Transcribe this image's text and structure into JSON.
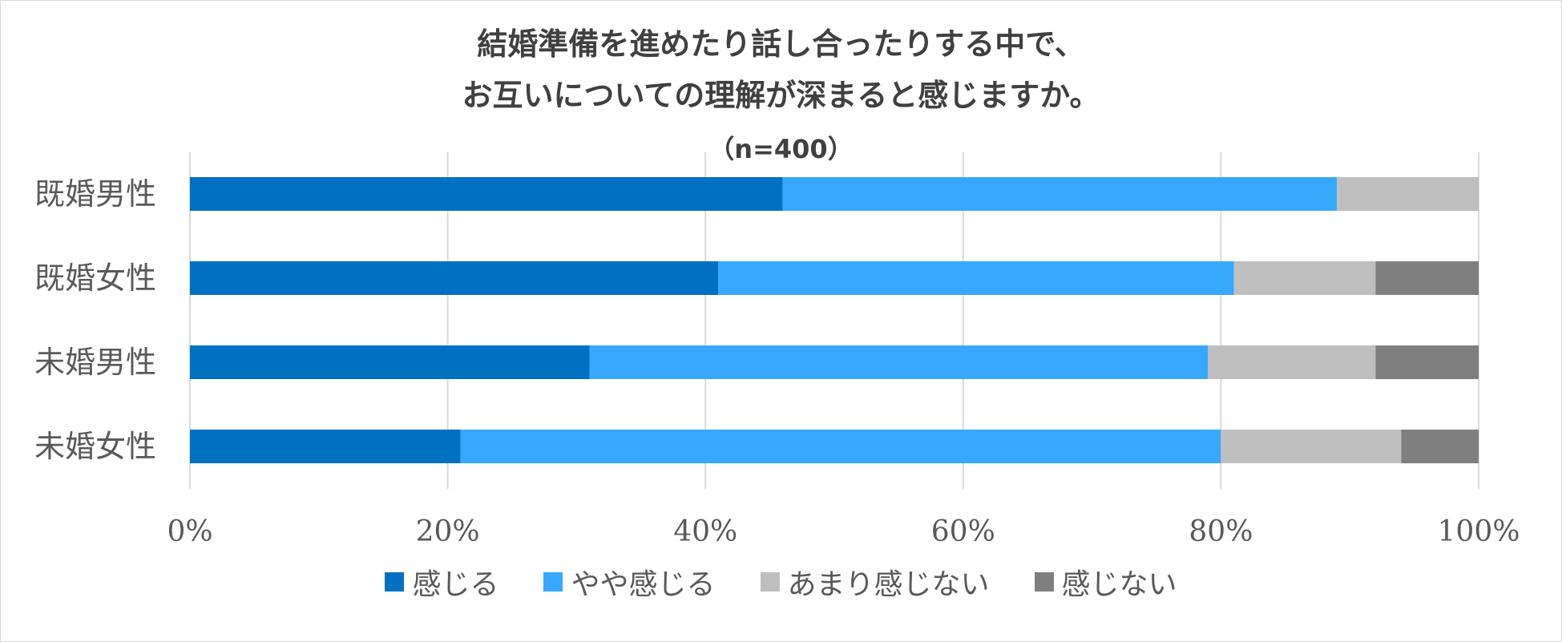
{
  "chart_data": {
    "type": "bar",
    "orientation": "horizontal",
    "stacked": true,
    "title_lines": [
      "結婚準備を進めたり話し合ったりする中で、",
      "お互いについての理解が深まると感じますか。"
    ],
    "subtitle": "（n=400）",
    "categories": [
      "既婚男性",
      "既婚女性",
      "未婚男性",
      "未婚女性"
    ],
    "series": [
      {
        "name": "感じる",
        "color": "#0070c0",
        "values": [
          46,
          41,
          31,
          21
        ]
      },
      {
        "name": "やや感じる",
        "color": "#37a8fd",
        "values": [
          43,
          40,
          48,
          59
        ]
      },
      {
        "name": "あまり感じない",
        "color": "#bfbfbf",
        "values": [
          11,
          11,
          13,
          14
        ]
      },
      {
        "name": "感じない",
        "color": "#7f7f7f",
        "values": [
          0,
          8,
          8,
          6
        ]
      }
    ],
    "x_ticks": [
      "0%",
      "20%",
      "40%",
      "60%",
      "80%",
      "100%"
    ],
    "xlim": [
      0,
      100
    ],
    "grid": true,
    "legend_position": "bottom"
  }
}
